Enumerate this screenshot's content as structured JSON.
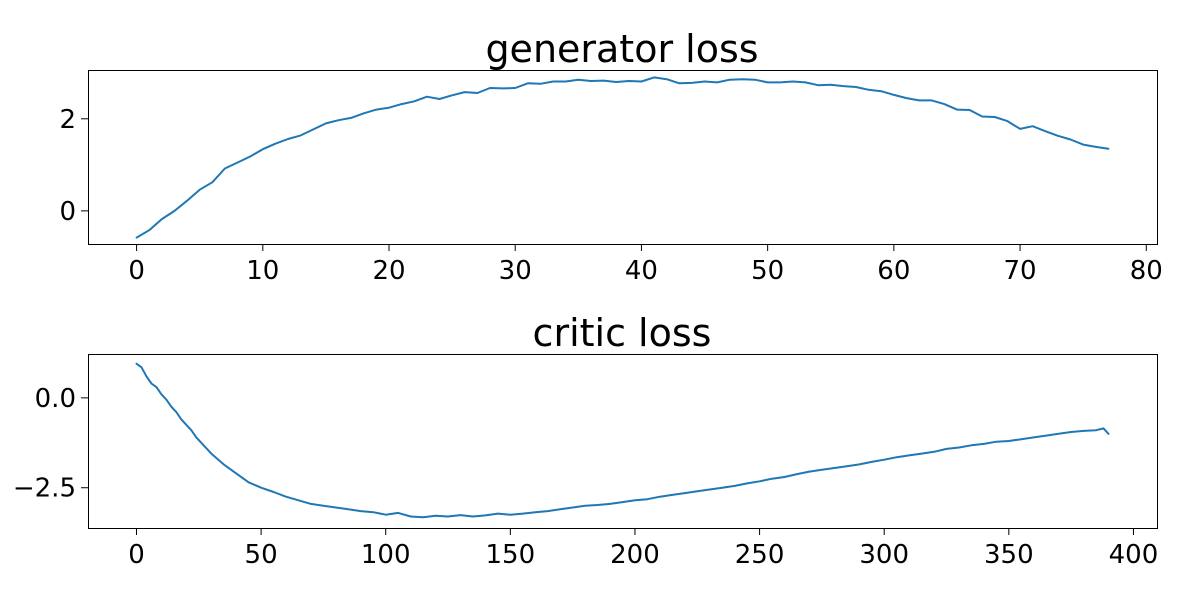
{
  "chart_data": [
    {
      "type": "line",
      "title": "generator loss",
      "xlabel": "",
      "ylabel": "",
      "xlim": [
        -3.85,
        80.85
      ],
      "ylim": [
        -0.72,
        3.06
      ],
      "xticks": [
        0,
        10,
        20,
        30,
        40,
        50,
        60,
        70,
        80
      ],
      "xtick_labels": [
        "0",
        "10",
        "20",
        "30",
        "40",
        "50",
        "60",
        "70",
        "80"
      ],
      "yticks": [
        0,
        2
      ],
      "ytick_labels": [
        "0",
        "2"
      ],
      "grid": false,
      "color": "#1f77b4",
      "series": [
        {
          "x": [
            0,
            1,
            2,
            3,
            4,
            5,
            6,
            7,
            8,
            9,
            10,
            11,
            12,
            13,
            14,
            15,
            16,
            17,
            18,
            19,
            20,
            21,
            22,
            23,
            24,
            25,
            26,
            27,
            28,
            29,
            30,
            31,
            32,
            33,
            34,
            35,
            36,
            37,
            38,
            39,
            40,
            41,
            42,
            43,
            44,
            45,
            46,
            47,
            48,
            49,
            50,
            51,
            52,
            53,
            54,
            55,
            56,
            57,
            58,
            59,
            60,
            61,
            62,
            63,
            64,
            65,
            66,
            67,
            68,
            69,
            70,
            71,
            72,
            73,
            74,
            75,
            76,
            77
          ],
          "values": [
            -0.58,
            -0.42,
            -0.18,
            0.0,
            0.22,
            0.46,
            0.62,
            0.92,
            1.05,
            1.18,
            1.34,
            1.46,
            1.56,
            1.64,
            1.77,
            1.9,
            1.97,
            2.02,
            2.12,
            2.2,
            2.24,
            2.32,
            2.38,
            2.48,
            2.43,
            2.51,
            2.58,
            2.56,
            2.67,
            2.66,
            2.67,
            2.77,
            2.76,
            2.81,
            2.81,
            2.85,
            2.82,
            2.83,
            2.8,
            2.82,
            2.81,
            2.9,
            2.86,
            2.77,
            2.78,
            2.81,
            2.79,
            2.85,
            2.86,
            2.85,
            2.79,
            2.79,
            2.81,
            2.79,
            2.73,
            2.74,
            2.71,
            2.69,
            2.63,
            2.6,
            2.52,
            2.45,
            2.4,
            2.4,
            2.32,
            2.2,
            2.19,
            2.05,
            2.04,
            1.95,
            1.78,
            1.84,
            1.73,
            1.63,
            1.55,
            1.44,
            1.39,
            1.35
          ]
        }
      ]
    },
    {
      "type": "line",
      "title": "critic loss",
      "xlabel": "",
      "ylabel": "",
      "xlim": [
        -19.45,
        409.45
      ],
      "ylim": [
        -3.62,
        1.22
      ],
      "xticks": [
        0,
        50,
        100,
        150,
        200,
        250,
        300,
        350,
        400
      ],
      "xtick_labels": [
        "0",
        "50",
        "100",
        "150",
        "200",
        "250",
        "300",
        "350",
        "400"
      ],
      "yticks": [
        0.0,
        -2.5
      ],
      "ytick_labels": [
        "0.0",
        "−2.5"
      ],
      "grid": false,
      "color": "#1f77b4",
      "series": [
        {
          "x": [
            0,
            2,
            4,
            6,
            8,
            10,
            12,
            14,
            16,
            18,
            20,
            22,
            24,
            26,
            28,
            30,
            35,
            40,
            45,
            50,
            55,
            60,
            65,
            70,
            75,
            80,
            85,
            90,
            95,
            100,
            105,
            110,
            115,
            120,
            125,
            130,
            135,
            140,
            145,
            150,
            155,
            160,
            165,
            170,
            175,
            180,
            185,
            190,
            195,
            200,
            205,
            210,
            215,
            220,
            225,
            230,
            235,
            240,
            245,
            250,
            255,
            260,
            265,
            270,
            275,
            280,
            285,
            290,
            295,
            300,
            305,
            310,
            315,
            320,
            325,
            330,
            335,
            340,
            345,
            350,
            355,
            360,
            365,
            370,
            375,
            380,
            385,
            388,
            390
          ],
          "values": [
            0.95,
            0.85,
            0.6,
            0.4,
            0.3,
            0.1,
            -0.05,
            -0.25,
            -0.4,
            -0.6,
            -0.75,
            -0.9,
            -1.1,
            -1.25,
            -1.4,
            -1.55,
            -1.85,
            -2.1,
            -2.35,
            -2.5,
            -2.62,
            -2.75,
            -2.85,
            -2.95,
            -3.0,
            -3.05,
            -3.1,
            -3.15,
            -3.18,
            -3.25,
            -3.2,
            -3.3,
            -3.32,
            -3.28,
            -3.3,
            -3.26,
            -3.3,
            -3.27,
            -3.22,
            -3.25,
            -3.22,
            -3.18,
            -3.15,
            -3.1,
            -3.05,
            -3.0,
            -2.98,
            -2.95,
            -2.9,
            -2.85,
            -2.82,
            -2.75,
            -2.7,
            -2.65,
            -2.6,
            -2.55,
            -2.5,
            -2.45,
            -2.38,
            -2.32,
            -2.25,
            -2.2,
            -2.12,
            -2.05,
            -2.0,
            -1.95,
            -1.9,
            -1.85,
            -1.78,
            -1.72,
            -1.65,
            -1.6,
            -1.55,
            -1.5,
            -1.42,
            -1.38,
            -1.32,
            -1.28,
            -1.22,
            -1.2,
            -1.15,
            -1.1,
            -1.05,
            -1.0,
            -0.95,
            -0.92,
            -0.9,
            -0.85,
            -1.0
          ]
        }
      ]
    }
  ]
}
